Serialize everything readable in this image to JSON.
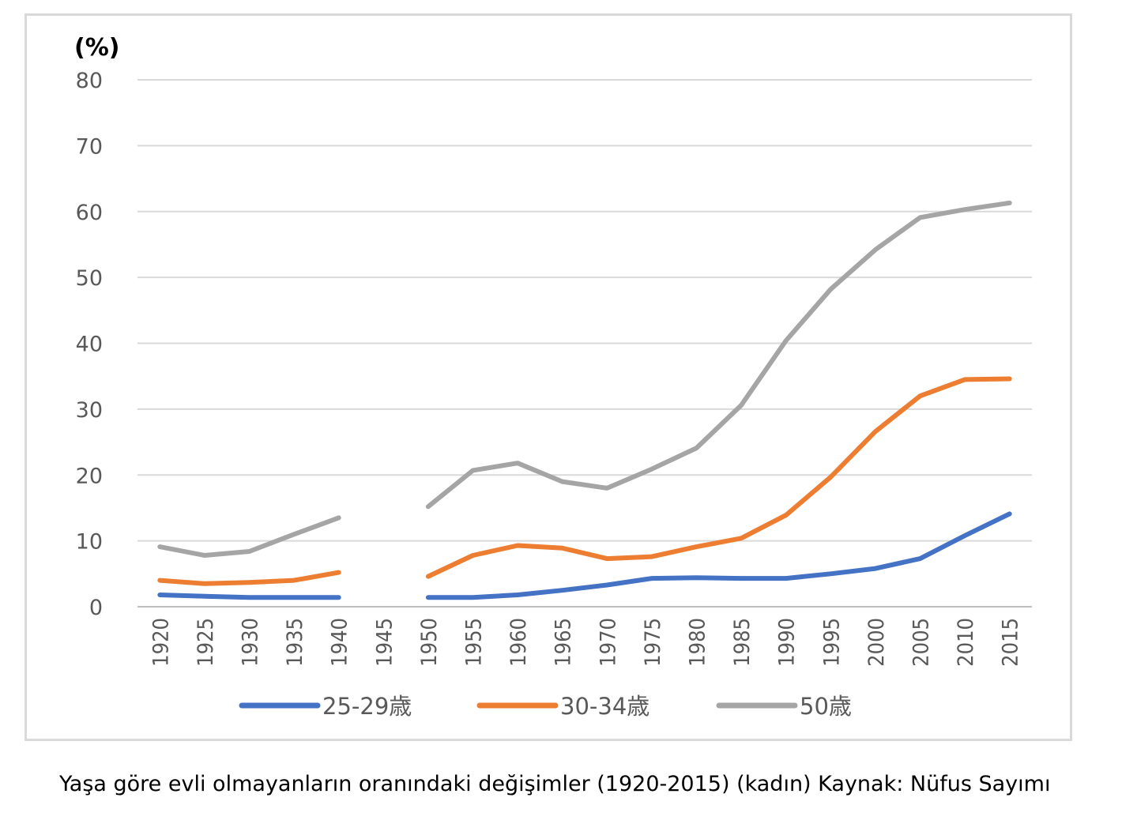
{
  "chart_data": {
    "type": "line",
    "unit_label": "(%)",
    "x": [
      "1920",
      "1925",
      "1930",
      "1935",
      "1940",
      "1945",
      "1950",
      "1955",
      "1960",
      "1965",
      "1970",
      "1975",
      "1980",
      "1985",
      "1990",
      "1995",
      "2000",
      "2005",
      "2010",
      "2015"
    ],
    "ylim": [
      0,
      80
    ],
    "yticks": [
      0,
      10,
      20,
      30,
      40,
      50,
      60,
      70,
      80
    ],
    "grid": true,
    "legend_position": "bottom",
    "series": [
      {
        "name": "25-29歳",
        "color": "#4472c4",
        "values": [
          1.8,
          1.6,
          1.4,
          1.4,
          1.4,
          null,
          1.4,
          1.4,
          1.8,
          2.5,
          3.3,
          4.3,
          4.4,
          4.3,
          4.3,
          5.0,
          5.8,
          7.3,
          10.8,
          14.1
        ]
      },
      {
        "name": "30-34歳",
        "color": "#ed7d31",
        "values": [
          4.0,
          3.5,
          3.7,
          4.0,
          5.2,
          null,
          4.6,
          7.8,
          9.3,
          8.9,
          7.3,
          7.6,
          9.1,
          10.4,
          13.9,
          19.7,
          26.6,
          32.0,
          34.5,
          34.6
        ]
      },
      {
        "name": "50歳",
        "color": "#a5a5a5",
        "values": [
          9.1,
          7.8,
          8.4,
          11.0,
          13.5,
          null,
          15.2,
          20.7,
          21.8,
          19.0,
          18.0,
          20.9,
          24.1,
          30.6,
          40.4,
          48.2,
          54.2,
          59.1,
          60.3,
          61.3
        ]
      }
    ]
  },
  "caption": "Yaşa göre evli olmayanların oranındaki değişimler (1920-2015) (kadın) Kaynak: Nüfus Sayımı"
}
